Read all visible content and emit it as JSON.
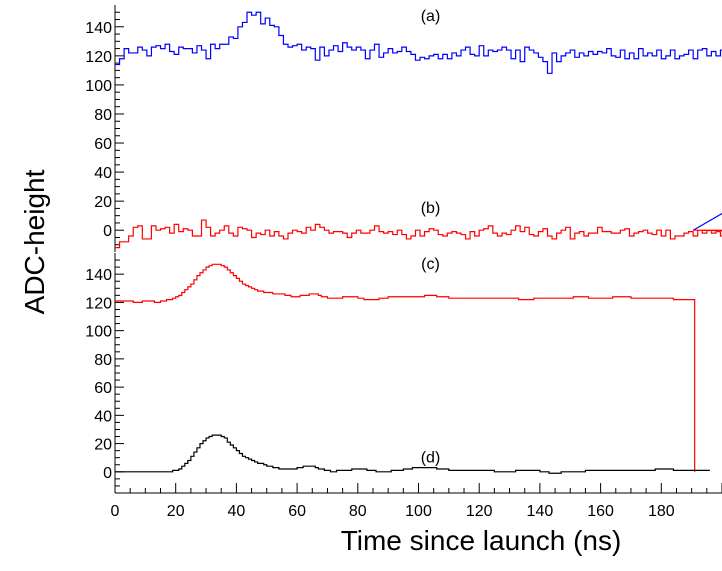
{
  "chart_data": {
    "type": "line",
    "ylabel": "ADC-height",
    "xlabel": "Time since launch (ns)",
    "x_range": [
      0,
      200
    ],
    "x_ticks": [
      0,
      20,
      40,
      60,
      80,
      100,
      120,
      140,
      160,
      180
    ],
    "y_ticks": [
      0,
      20,
      40,
      60,
      80,
      100,
      120,
      140
    ],
    "grid": false,
    "panels": [
      {
        "id": "top",
        "ylim": [
          -15,
          155
        ],
        "series": [
          {
            "annotation": "(a)",
            "annotation_x": 100,
            "annotation_y": 148,
            "color": "#0000ff",
            "bin_width": 1.5,
            "x_start": 0,
            "x_end": 190.5,
            "drop_to": 0,
            "values": [
              114,
              118,
              125,
              122,
              122,
              126,
              124,
              120,
              126,
              127,
              125,
              128,
              123,
              121,
              126,
              125,
              125,
              122,
              127,
              124,
              118,
              128,
              125,
              128,
              128,
              133,
              132,
              140,
              143,
              150,
              148,
              150,
              142,
              146,
              141,
              140,
              134,
              128,
              126,
              127,
              128,
              124,
              126,
              125,
              117,
              126,
              120,
              124,
              127,
              123,
              129,
              126,
              124,
              126,
              124,
              118,
              124,
              128,
              119,
              122,
              125,
              122,
              123,
              126,
              123,
              121,
              117,
              119,
              118,
              120,
              121,
              118,
              121,
              118,
              122,
              120,
              124,
              126,
              121,
              120,
              127,
              120,
              124,
              123,
              124,
              126,
              124,
              118,
              124,
              116,
              126,
              124,
              122,
              119,
              116,
              108,
              122,
              116,
              120,
              122,
              124,
              119,
              122,
              120,
              123,
              121,
              123,
              122,
              125,
              120,
              119,
              124,
              118,
              122,
              118,
              125,
              120,
              122,
              120,
              124,
              118,
              120,
              124,
              118,
              120,
              121,
              124,
              118,
              124,
              125,
              120,
              123,
              120,
              124,
              116,
              124,
              118,
              116,
              125,
              122,
              119,
              118,
              121,
              122,
              120,
              126,
              121,
              117,
              124,
              128,
              118,
              121,
              117,
              120,
              124,
              118,
              120,
              117,
              124,
              128,
              119,
              124,
              121,
              120,
              120,
              126,
              118,
              123,
              120,
              122,
              118,
              122,
              125,
              118,
              124,
              120,
              118,
              127,
              121,
              122,
              118,
              125,
              117,
              121,
              128,
              119,
              120,
              127,
              122,
              117,
              128,
              121,
              128,
              127,
              120,
              119,
              127
            ]
          },
          {
            "annotation": "(b)",
            "annotation_x": 100,
            "annotation_y": 16,
            "color": "#ff0000",
            "bin_width": 1.5,
            "x_start": 0,
            "x_end": 190.5,
            "extend_to": 200,
            "values": [
              -12,
              -8,
              -8,
              -4,
              2,
              3,
              -6,
              -6,
              3,
              0,
              1,
              2,
              -2,
              4,
              -1,
              1,
              0,
              -4,
              -4,
              7,
              2,
              -4,
              -2,
              0,
              3,
              -2,
              -4,
              2,
              1,
              0,
              -5,
              -2,
              -3,
              0,
              -4,
              -1,
              -4,
              -6,
              -2,
              0,
              -1,
              -2,
              2,
              0,
              4,
              2,
              0,
              -2,
              -1,
              -1,
              -2,
              -5,
              -2,
              0,
              -2,
              -2,
              0,
              3,
              -1,
              -2,
              -1,
              -3,
              0,
              -3,
              -6,
              -4,
              0,
              -4,
              -1,
              1,
              0,
              -3,
              -4,
              -2,
              -1,
              -2,
              -3,
              -6,
              -1,
              -4,
              0,
              1,
              3,
              -2,
              -4,
              -2,
              -3,
              0,
              3,
              -1,
              2,
              -3,
              -4,
              -1,
              1,
              -4,
              -6,
              -2,
              0,
              2,
              -6,
              -2,
              -1,
              -4,
              -2,
              -2,
              2,
              -1,
              -1,
              -2,
              -2,
              0,
              1,
              -4,
              -2,
              -1,
              0,
              -2,
              -3,
              0,
              -4,
              0,
              -6,
              -4,
              -4,
              -2,
              -1,
              -4,
              0,
              -2,
              0,
              -2,
              -1,
              -4,
              -3,
              1,
              0,
              1,
              -4,
              1,
              -2,
              1,
              0,
              -6,
              -4,
              0,
              1,
              -1,
              1,
              -4,
              -2,
              -4,
              -2,
              0,
              -2,
              -3,
              -4,
              0,
              -2,
              1,
              -4,
              -1,
              -4,
              -4,
              -2,
              -2,
              0,
              1,
              -1,
              -2,
              2,
              0,
              -4,
              -4,
              0,
              -2,
              -2,
              -4,
              -6,
              0,
              -2,
              -1,
              -2,
              -2,
              -4,
              -1,
              3,
              -4,
              0,
              -2,
              -1,
              -3,
              2,
              -4
            ]
          }
        ]
      },
      {
        "id": "bottom",
        "ylim": [
          -15,
          155
        ],
        "series": [
          {
            "annotation": "(c)",
            "annotation_x": 100,
            "annotation_y": 148,
            "color": "#ff0000",
            "bin_width": 1,
            "x_start": 0,
            "x_end": 191,
            "drop_to": 0,
            "values": [
              121,
              121,
              121,
              121,
              121,
              121,
              120,
              120,
              120,
              121,
              121,
              121,
              121,
              120,
              120,
              121,
              121,
              122,
              122,
              123,
              124,
              125,
              127,
              129,
              131,
              133,
              136,
              139,
              141,
              143,
              145,
              146,
              147,
              147,
              147,
              146,
              145,
              143,
              141,
              139,
              137,
              135,
              133,
              132,
              131,
              130,
              129,
              128,
              128,
              127,
              127,
              127,
              126,
              126,
              126,
              126,
              125,
              125,
              124,
              124,
              124,
              125,
              125,
              125,
              126,
              126,
              126,
              125,
              124,
              124,
              123,
              123,
              123,
              123,
              123,
              124,
              124,
              124,
              124,
              124,
              123,
              123,
              122,
              122,
              122,
              122,
              122,
              123,
              123,
              123,
              124,
              124,
              124,
              124,
              124,
              124,
              124,
              124,
              124,
              124,
              124,
              124,
              125,
              125,
              125,
              125,
              124,
              124,
              124,
              124,
              123,
              123,
              123,
              123,
              123,
              123,
              123,
              123,
              123,
              123,
              123,
              123,
              123,
              123,
              123,
              123,
              123,
              123,
              123,
              123,
              123,
              123,
              123,
              122,
              122,
              122,
              122,
              122,
              123,
              123,
              123,
              123,
              123,
              123,
              123,
              123,
              123,
              123,
              123,
              123,
              123,
              124,
              124,
              124,
              124,
              124,
              123,
              123,
              123,
              123,
              123,
              123,
              123,
              123,
              124,
              124,
              124,
              124,
              124,
              124,
              123,
              123,
              123,
              123,
              123,
              123,
              123,
              123,
              123,
              123,
              123,
              123,
              123,
              123,
              122,
              122,
              122,
              122,
              122,
              122,
              122
            ]
          },
          {
            "annotation": "(d)",
            "annotation_x": 100,
            "annotation_y": 11,
            "color": "#000000",
            "bin_width": 1,
            "x_start": 0,
            "x_end": 191,
            "values": [
              0,
              0,
              0,
              0,
              0,
              0,
              0,
              0,
              0,
              0,
              0,
              0,
              0,
              0,
              0,
              0,
              0,
              0,
              0,
              1,
              1,
              2,
              4,
              6,
              8,
              11,
              14,
              17,
              20,
              22,
              24,
              25,
              26,
              26,
              26,
              25,
              24,
              21,
              19,
              17,
              15,
              13,
              11,
              10,
              9,
              8,
              7,
              6,
              6,
              5,
              4,
              4,
              3,
              3,
              2,
              2,
              2,
              2,
              2,
              2,
              3,
              3,
              4,
              4,
              4,
              4,
              3,
              2,
              2,
              1,
              1,
              0,
              0,
              1,
              1,
              1,
              1,
              1,
              2,
              2,
              2,
              2,
              2,
              1,
              1,
              1,
              0,
              0,
              0,
              0,
              0,
              1,
              1,
              1,
              1,
              2,
              2,
              2,
              3,
              3,
              3,
              3,
              3,
              3,
              3,
              3,
              2,
              2,
              2,
              2,
              1,
              1,
              1,
              1,
              1,
              1,
              1,
              1,
              1,
              1,
              1,
              1,
              1,
              1,
              1,
              0,
              0,
              0,
              0,
              0,
              0,
              0,
              1,
              1,
              1,
              1,
              1,
              1,
              1,
              1,
              0,
              0,
              0,
              -1,
              -1,
              -1,
              -1,
              0,
              0,
              0,
              0,
              0,
              0,
              0,
              0,
              1,
              1,
              1,
              1,
              1,
              1,
              1,
              1,
              1,
              1,
              1,
              1,
              1,
              1,
              1,
              1,
              1,
              1,
              1,
              1,
              1,
              1,
              1,
              2,
              2,
              2,
              2,
              2,
              2,
              1,
              1,
              1,
              1,
              1,
              1,
              1,
              1,
              1,
              1,
              1,
              1
            ]
          }
        ]
      }
    ]
  }
}
